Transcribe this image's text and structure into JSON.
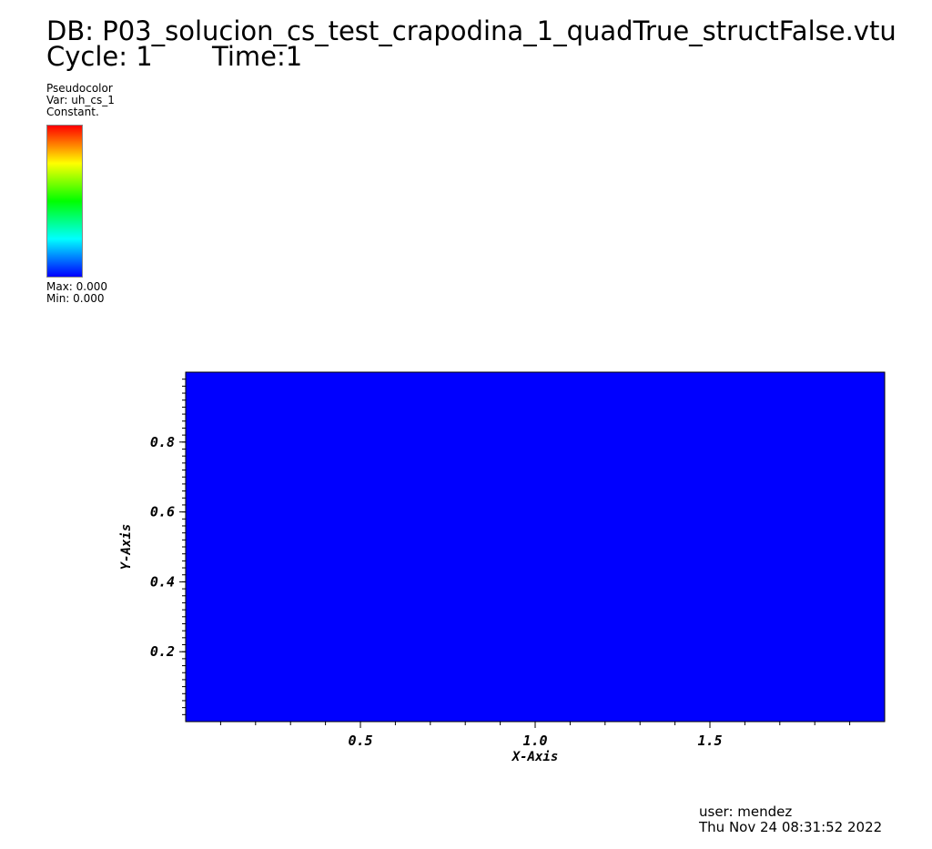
{
  "header": {
    "db_line": "DB: P03_solucion_cs_test_crapodina_1_quadTrue_structFalse.vtu",
    "cycle_label": "Cycle: 1",
    "time_label": "Time:1"
  },
  "legend": {
    "plot_type": "Pseudocolor",
    "var_line": "Var: uh_cs_1",
    "constant_line": "Constant.",
    "max_line": "Max:  0.000",
    "min_line": "Min:  0.000",
    "gradient_colors": [
      "#0000ff",
      "#00ffff",
      "#00ff00",
      "#ffff00",
      "#ff0000"
    ]
  },
  "footer": {
    "user_line": "user: mendez",
    "date_line": "Thu Nov 24 08:31:52 2022"
  },
  "chart_data": {
    "type": "heatmap",
    "field": "uh_cs_1",
    "constant_value": 0.0,
    "fill_color": "#0000ff",
    "xlabel": "X-Axis",
    "ylabel": "Y-Axis",
    "xlim": [
      0,
      2
    ],
    "ylim": [
      0,
      1
    ],
    "x_ticks": [
      {
        "value": 0.5,
        "label": "0.5"
      },
      {
        "value": 1.0,
        "label": "1.0"
      },
      {
        "value": 1.5,
        "label": "1.5"
      }
    ],
    "y_ticks": [
      {
        "value": 0.2,
        "label": "0.2"
      },
      {
        "value": 0.4,
        "label": "0.4"
      },
      {
        "value": 0.6,
        "label": "0.6"
      },
      {
        "value": 0.8,
        "label": "0.8"
      }
    ],
    "x_minor_step": 0.1,
    "y_minor_step": 0.02,
    "grid": false
  }
}
